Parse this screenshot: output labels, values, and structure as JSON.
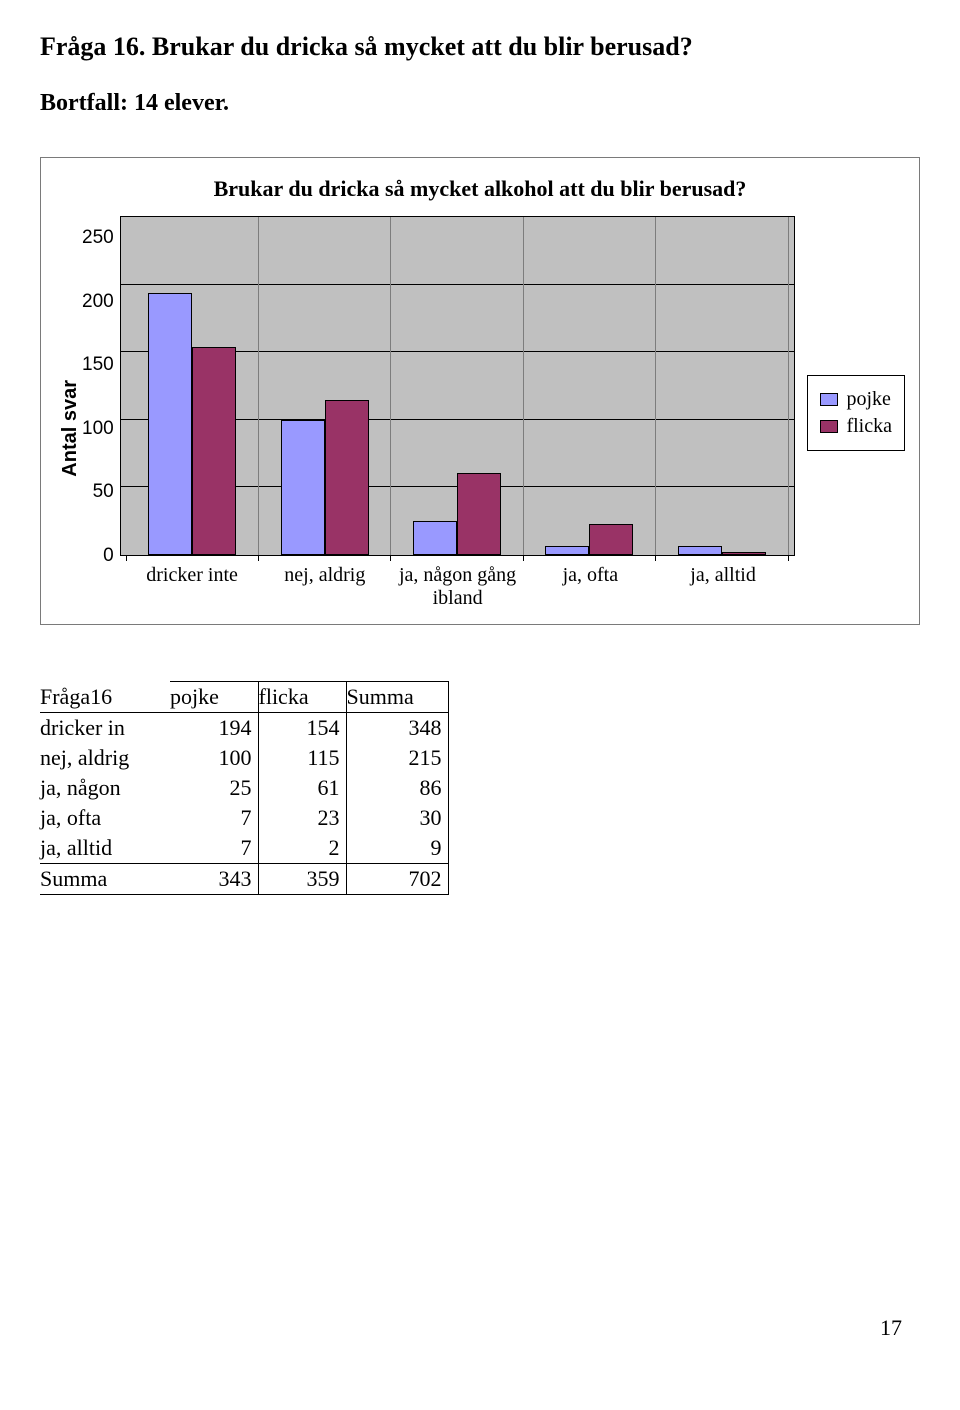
{
  "heading": "Fråga 16. Brukar du dricka så mycket att du blir berusad?",
  "subheading": "Bortfall: 14 elever.",
  "page_number": "17",
  "chart": {
    "type": "bar-grouped",
    "title": "Brukar du dricka så mycket alkohol att du blir berusad?",
    "y_label": "Antal svar",
    "y_max": 250,
    "y_ticks": [
      250,
      200,
      150,
      100,
      50,
      0
    ],
    "categories": [
      "dricker inte",
      "nej, aldrig",
      "ja, någon gång ibland",
      "ja, ofta",
      "ja, alltid"
    ],
    "series": [
      {
        "label": "pojke",
        "color": "#9999ff",
        "values": [
          194,
          100,
          25,
          7,
          7
        ]
      },
      {
        "label": "flicka",
        "color": "#993366",
        "values": [
          154,
          115,
          61,
          23,
          2
        ]
      }
    ],
    "plot_bg": "#c0c0c0",
    "grid_color": "#000000"
  },
  "table": {
    "corner": "Fråga16",
    "col_headers": [
      "pojke",
      "flicka",
      "Summa"
    ],
    "rows": [
      {
        "label": "dricker in",
        "cells": [
          194,
          154,
          348
        ]
      },
      {
        "label": "nej, aldrig",
        "cells": [
          100,
          115,
          215
        ]
      },
      {
        "label": "ja, någon",
        "cells": [
          25,
          61,
          86
        ]
      },
      {
        "label": "ja, ofta",
        "cells": [
          7,
          23,
          30
        ]
      },
      {
        "label": "ja, alltid",
        "cells": [
          7,
          2,
          9
        ]
      }
    ],
    "footer": {
      "label": "Summa",
      "cells": [
        343,
        359,
        702
      ]
    }
  }
}
